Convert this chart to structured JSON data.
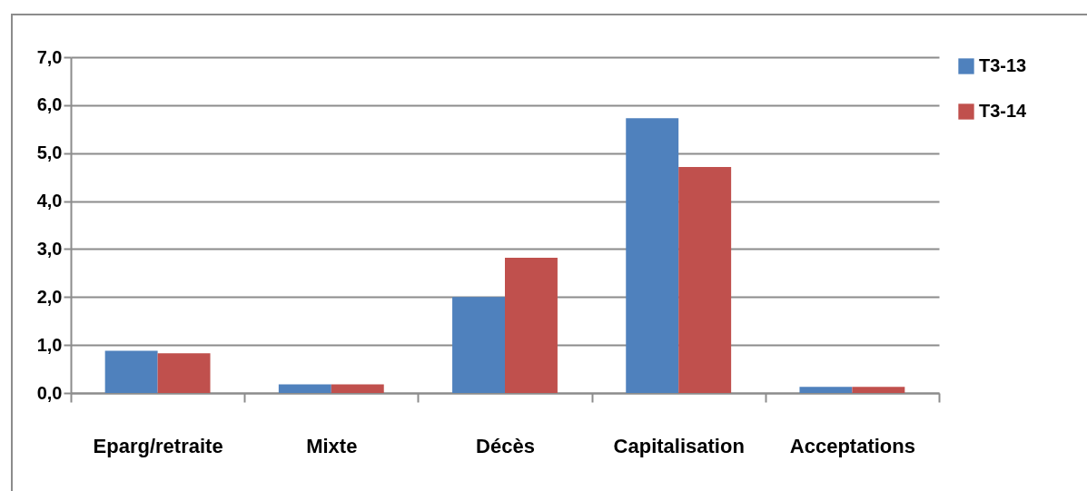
{
  "chart_data": {
    "type": "bar",
    "categories": [
      "Eparg/retraite",
      "Mixte",
      "Décès",
      "Capitalisation",
      "Acceptations"
    ],
    "series": [
      {
        "name": "T3-13",
        "color": "#4f81bd",
        "values": [
          0.88,
          0.18,
          2.0,
          5.73,
          0.13
        ]
      },
      {
        "name": "T3-14",
        "color": "#c0504d",
        "values": [
          0.83,
          0.18,
          2.82,
          4.71,
          0.13
        ]
      }
    ],
    "ylim": [
      0,
      7
    ],
    "yticks": [
      {
        "value": 0,
        "label": "0,0"
      },
      {
        "value": 1,
        "label": "1,0"
      },
      {
        "value": 2,
        "label": "2,0"
      },
      {
        "value": 3,
        "label": "3,0"
      },
      {
        "value": 4,
        "label": "4,0"
      },
      {
        "value": 5,
        "label": "5,0"
      },
      {
        "value": 6,
        "label": "6,0"
      },
      {
        "value": 7,
        "label": "7,0"
      }
    ],
    "grid": "y",
    "legend": "right"
  }
}
